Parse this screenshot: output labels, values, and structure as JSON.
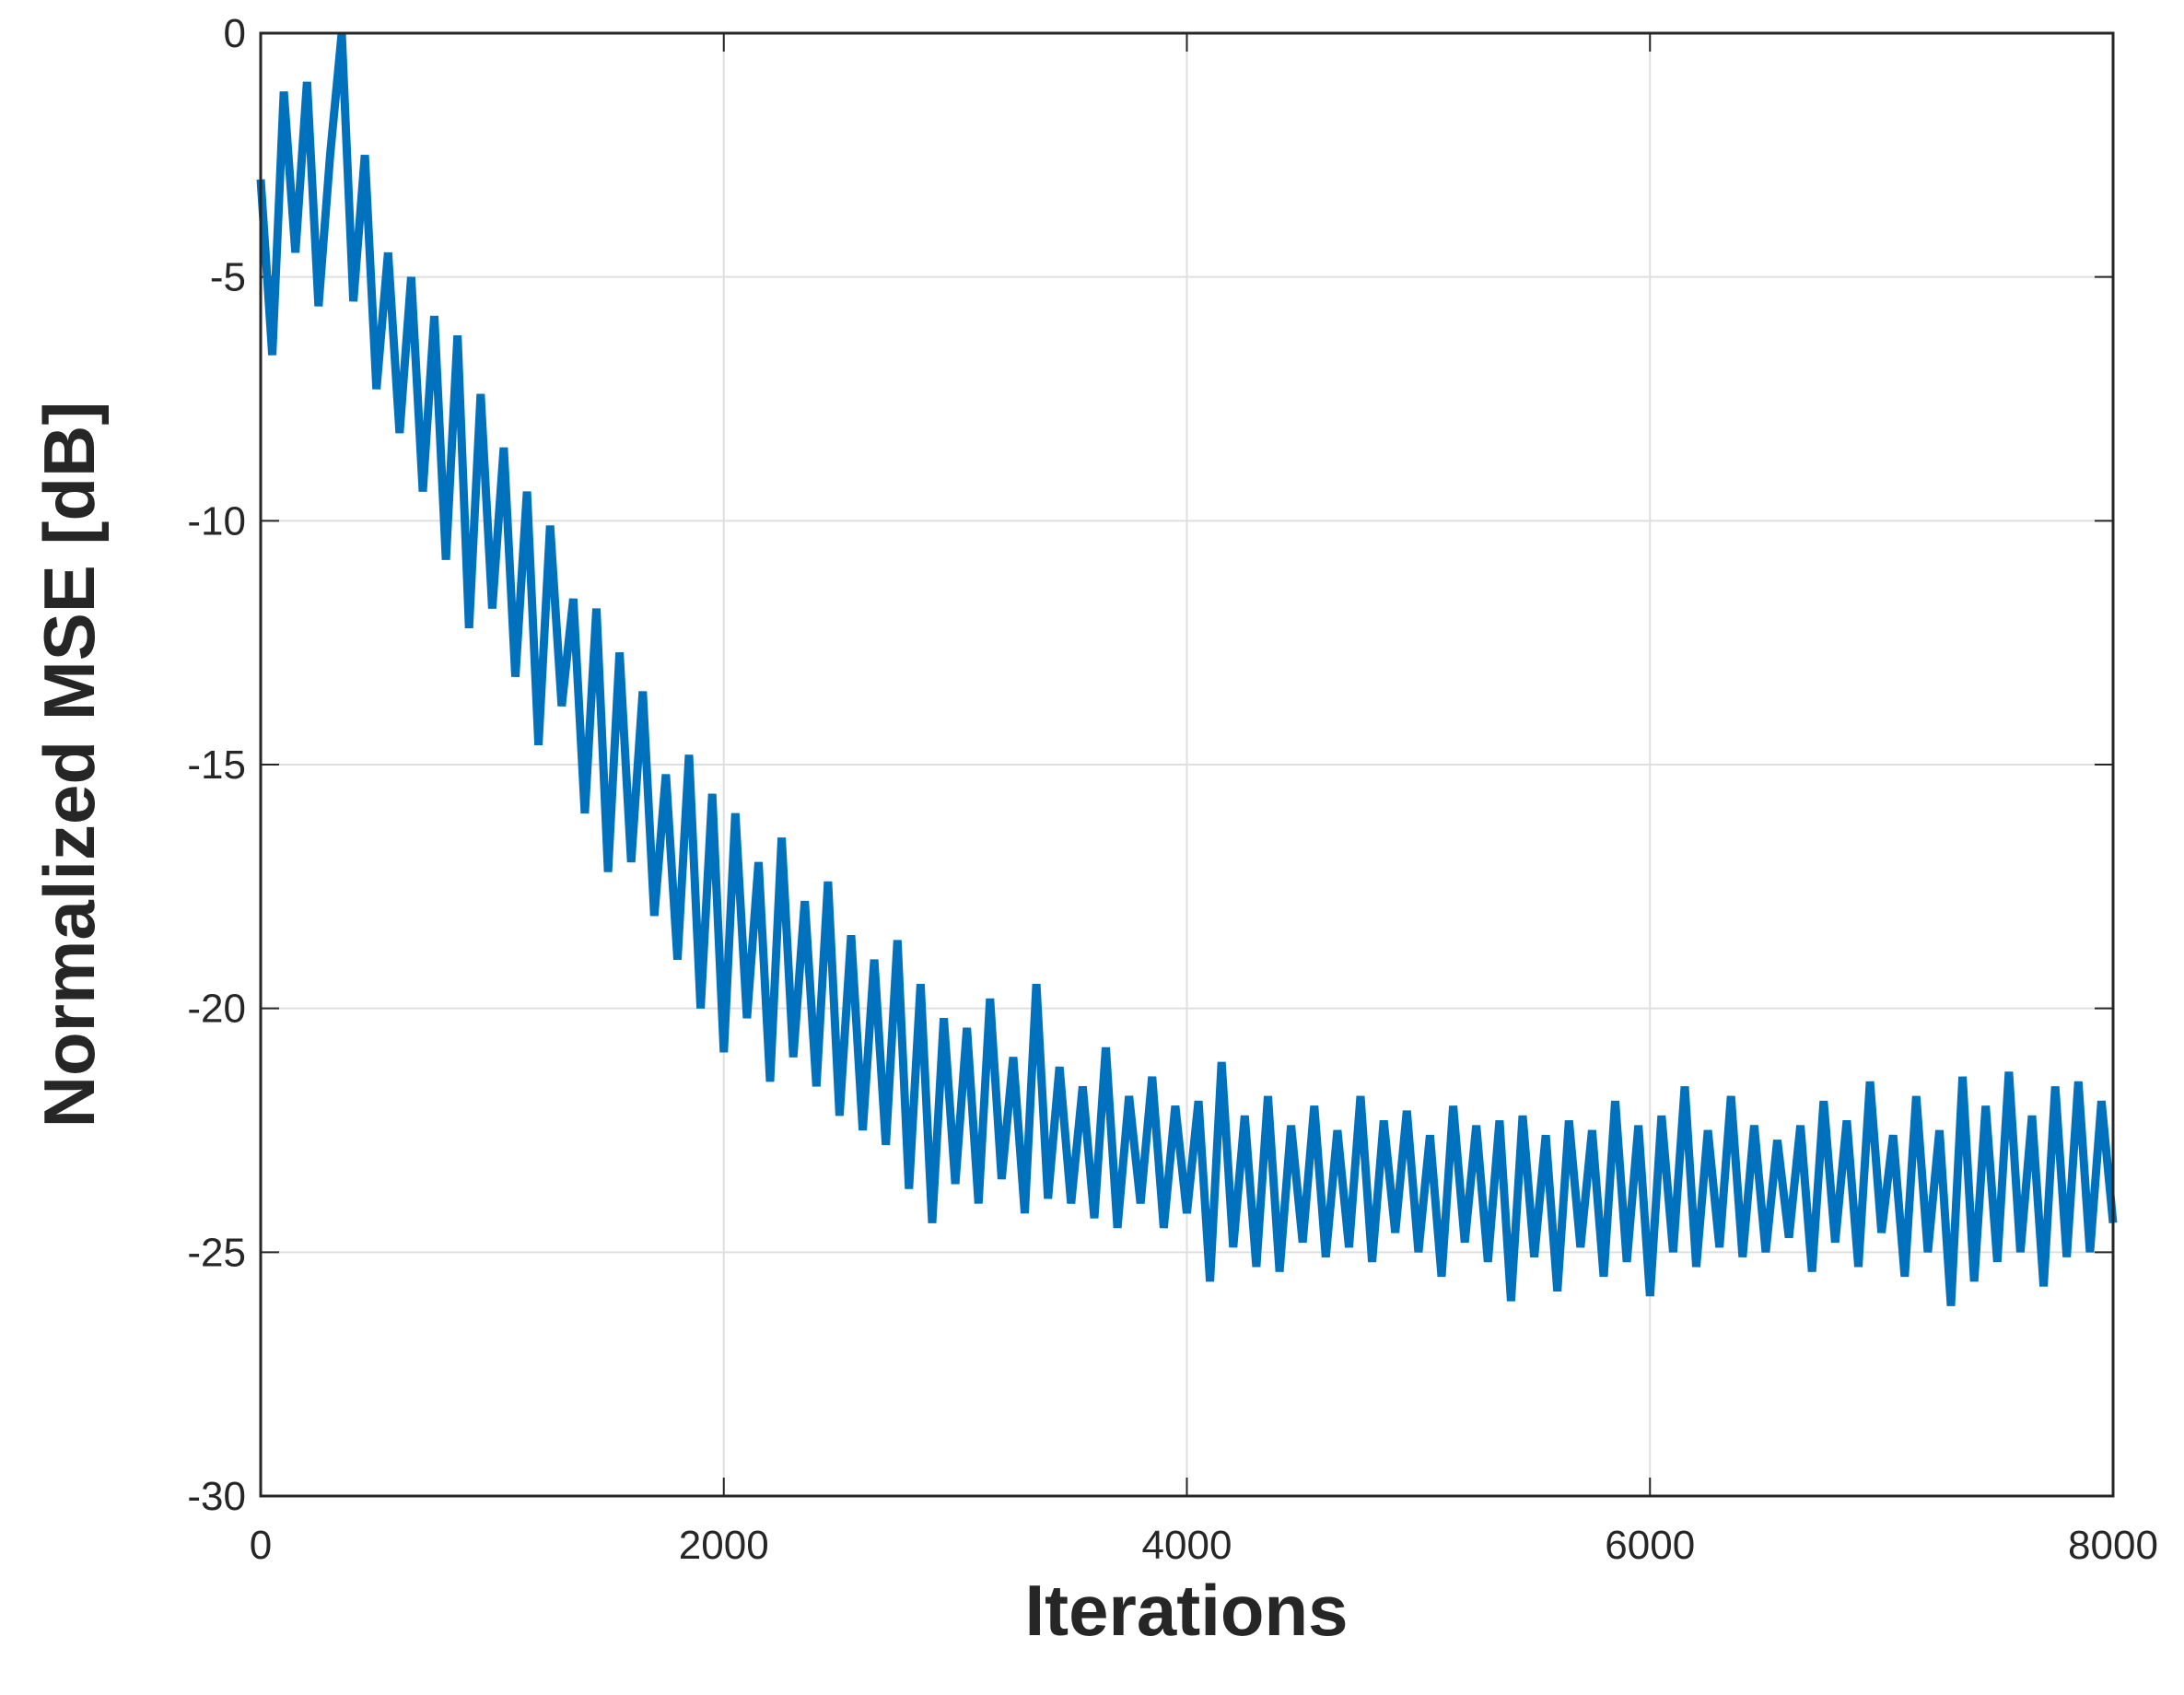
{
  "chart_data": {
    "type": "line",
    "xlabel": "Iterations",
    "ylabel": "Normalized MSE [dB]",
    "color": "#0072bd",
    "grid": true,
    "xlim": [
      0,
      8000
    ],
    "ylim": [
      -30,
      0
    ],
    "xticks": [
      0,
      2000,
      4000,
      6000,
      8000
    ],
    "yticks": [
      -30,
      -25,
      -20,
      -15,
      -10,
      -5,
      0
    ],
    "x": [
      0,
      50,
      100,
      150,
      200,
      250,
      300,
      350,
      400,
      450,
      500,
      550,
      600,
      650,
      700,
      750,
      800,
      850,
      900,
      950,
      1000,
      1050,
      1100,
      1150,
      1200,
      1250,
      1300,
      1350,
      1400,
      1450,
      1500,
      1550,
      1600,
      1650,
      1700,
      1750,
      1800,
      1850,
      1900,
      1950,
      2000,
      2050,
      2100,
      2150,
      2200,
      2250,
      2300,
      2350,
      2400,
      2450,
      2500,
      2550,
      2600,
      2650,
      2700,
      2750,
      2800,
      2850,
      2900,
      2950,
      3000,
      3050,
      3100,
      3150,
      3200,
      3250,
      3300,
      3350,
      3400,
      3450,
      3500,
      3550,
      3600,
      3650,
      3700,
      3750,
      3800,
      3850,
      3900,
      3950,
      4000,
      4050,
      4100,
      4150,
      4200,
      4250,
      4300,
      4350,
      4400,
      4450,
      4500,
      4550,
      4600,
      4650,
      4700,
      4750,
      4800,
      4850,
      4900,
      4950,
      5000,
      5050,
      5100,
      5150,
      5200,
      5250,
      5300,
      5350,
      5400,
      5450,
      5500,
      5550,
      5600,
      5650,
      5700,
      5750,
      5800,
      5850,
      5900,
      5950,
      6000,
      6050,
      6100,
      6150,
      6200,
      6250,
      6300,
      6350,
      6400,
      6450,
      6500,
      6550,
      6600,
      6650,
      6700,
      6750,
      6800,
      6850,
      6900,
      6950,
      7000,
      7050,
      7100,
      7150,
      7200,
      7250,
      7300,
      7350,
      7400,
      7450,
      7500,
      7550,
      7600,
      7650,
      7700,
      7750,
      7800,
      7850,
      7900,
      7950,
      8000
    ],
    "values": [
      -3,
      -6.6,
      -1.2,
      -4.5,
      -1.0,
      -5.6,
      -2.5,
      0,
      -5.5,
      -2.5,
      -7.3,
      -4.5,
      -8.2,
      -5.0,
      -9.4,
      -5.8,
      -10.8,
      -6.2,
      -12.2,
      -7.4,
      -11.8,
      -8.5,
      -13.2,
      -9.4,
      -14.6,
      -10.1,
      -13.8,
      -11.6,
      -16.0,
      -11.8,
      -17.2,
      -12.7,
      -17.0,
      -13.5,
      -18.1,
      -15.2,
      -19.0,
      -14.8,
      -20.0,
      -15.6,
      -20.9,
      -16.0,
      -20.2,
      -17.0,
      -21.5,
      -16.5,
      -21.0,
      -17.8,
      -21.6,
      -17.4,
      -22.2,
      -18.5,
      -22.5,
      -19.0,
      -22.8,
      -18.6,
      -23.7,
      -19.5,
      -24.4,
      -20.2,
      -23.6,
      -20.4,
      -24.0,
      -19.8,
      -23.5,
      -21.0,
      -24.2,
      -19.5,
      -23.9,
      -21.2,
      -24.0,
      -21.6,
      -24.3,
      -20.8,
      -24.5,
      -21.8,
      -24.0,
      -21.4,
      -24.5,
      -22.0,
      -24.2,
      -21.9,
      -25.6,
      -21.1,
      -24.9,
      -22.2,
      -25.3,
      -21.8,
      -25.4,
      -22.4,
      -24.8,
      -22.0,
      -25.1,
      -22.5,
      -24.9,
      -21.8,
      -25.2,
      -22.3,
      -24.6,
      -22.1,
      -25.0,
      -22.6,
      -25.5,
      -22.0,
      -24.8,
      -22.4,
      -25.2,
      -22.3,
      -26.0,
      -22.2,
      -25.1,
      -22.6,
      -25.8,
      -22.3,
      -24.9,
      -22.5,
      -25.5,
      -21.9,
      -25.2,
      -22.4,
      -25.9,
      -22.2,
      -25.0,
      -21.6,
      -25.3,
      -22.5,
      -24.9,
      -21.8,
      -25.1,
      -22.4,
      -25.0,
      -22.7,
      -24.7,
      -22.4,
      -25.4,
      -21.9,
      -24.8,
      -22.3,
      -25.3,
      -21.5,
      -24.6,
      -22.6,
      -25.5,
      -21.8,
      -25.0,
      -22.5,
      -26.1,
      -21.4,
      -25.6,
      -22.0,
      -25.2,
      -21.3,
      -25.0,
      -22.2,
      -25.7,
      -21.6,
      -25.1,
      -21.5,
      -25.0,
      -21.9,
      -24.4
    ]
  }
}
